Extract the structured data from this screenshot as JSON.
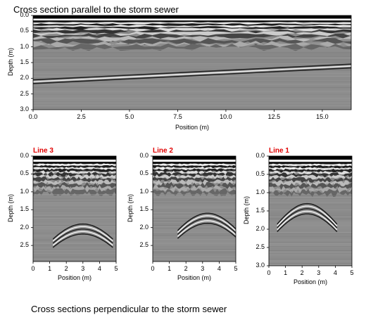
{
  "top_title": "Cross section parallel to the storm sewer",
  "bottom_caption": "Cross sections perpendicular to the storm sewer",
  "colors": {
    "line_label": "#e00000"
  },
  "chart_data": [
    {
      "type": "heatmap",
      "title": "",
      "xlabel": "Position (m)",
      "ylabel": "Depth (m)",
      "xlim": [
        0,
        16.5
      ],
      "ylim": [
        0,
        3.0
      ],
      "x_ticks": [
        "0.0",
        "2.5",
        "5.0",
        "7.5",
        "10.0",
        "12.5",
        "15.0"
      ],
      "y_ticks": [
        "0.0",
        "0.5",
        "1.0",
        "1.5",
        "2.0",
        "2.5",
        "3.0"
      ],
      "features": {
        "reflector_depth_start": 2.05,
        "reflector_depth_end": 1.55
      }
    },
    {
      "type": "heatmap",
      "title": "Line 3",
      "xlabel": "Position (m)",
      "ylabel": "Depth (m)",
      "xlim": [
        0,
        5
      ],
      "ylim": [
        0,
        2.95
      ],
      "x_ticks": [
        "0",
        "1",
        "2",
        "3",
        "4",
        "5"
      ],
      "y_ticks": [
        "0.0",
        "0.5",
        "1.0",
        "1.5",
        "2.0",
        "2.5"
      ],
      "features": {
        "hyperbola_apex_x": 3.0,
        "hyperbola_apex_depth": 1.9
      }
    },
    {
      "type": "heatmap",
      "title": "Line 2",
      "xlabel": "Position (m)",
      "ylabel": "Depth (m)",
      "xlim": [
        0,
        5
      ],
      "ylim": [
        0,
        2.95
      ],
      "x_ticks": [
        "0",
        "1",
        "2",
        "3",
        "4",
        "5"
      ],
      "y_ticks": [
        "0.0",
        "0.5",
        "1.0",
        "1.5",
        "2.0",
        "2.5"
      ],
      "features": {
        "hyperbola_apex_x": 3.3,
        "hyperbola_apex_depth": 1.6
      }
    },
    {
      "type": "heatmap",
      "title": "Line 1",
      "xlabel": "Position (m)",
      "ylabel": "Depth (m)",
      "xlim": [
        0,
        5
      ],
      "ylim": [
        0,
        3.0
      ],
      "x_ticks": [
        "0",
        "1",
        "2",
        "3",
        "4",
        "5"
      ],
      "y_ticks": [
        "0.0",
        "0.5",
        "1.0",
        "1.5",
        "2.0",
        "2.5",
        "3.0"
      ],
      "features": {
        "hyperbola_apex_x": 2.3,
        "hyperbola_apex_depth": 1.3
      }
    }
  ]
}
